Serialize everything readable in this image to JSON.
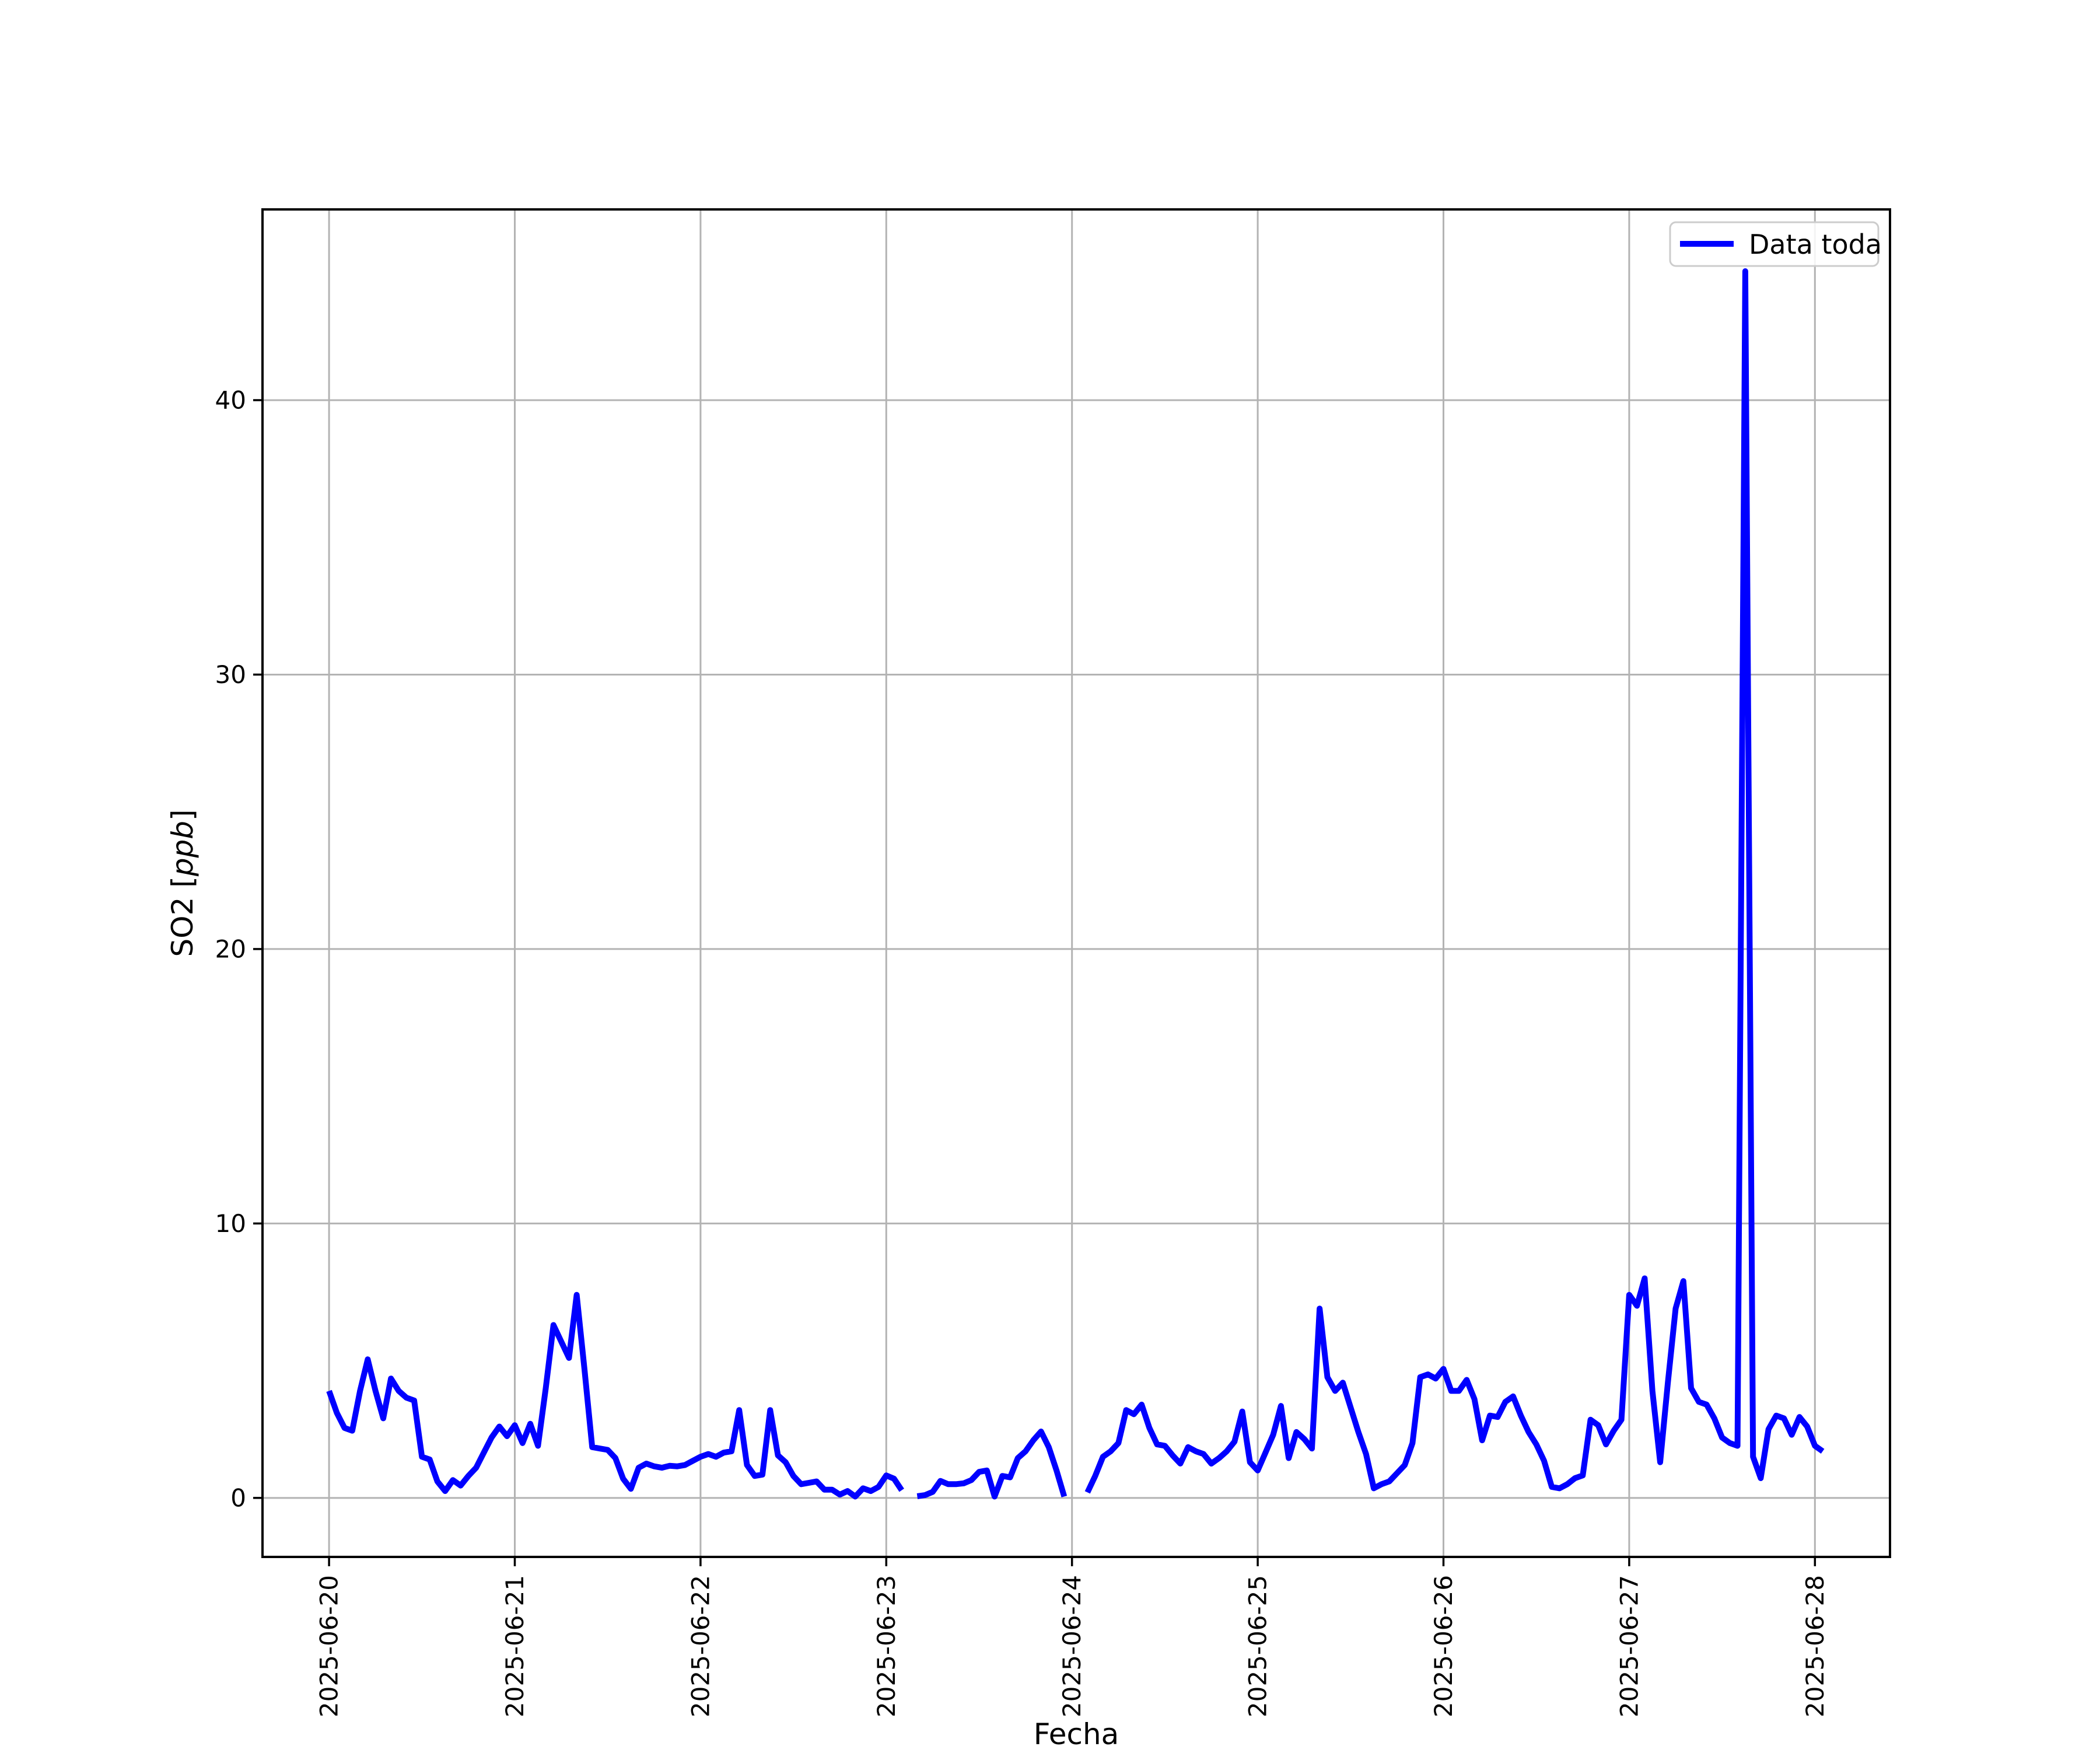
{
  "figure": {
    "background": "#ffffff",
    "xlabel": "Fecha",
    "ylabel_prefix": "SO2 [",
    "ylabel_math": "ppb",
    "ylabel_suffix": "]",
    "legend": {
      "label": "Data toda",
      "line_color": "#0000ff"
    }
  },
  "chart_data": {
    "type": "line",
    "title": "",
    "xlabel": "Fecha",
    "ylabel": "SO2 [ppb]",
    "legend_entries": [
      "Data toda"
    ],
    "legend_position": "upper right",
    "grid": true,
    "grid_color": "#b3b3b3",
    "line_color": "#0000ff",
    "line_width": 10,
    "x_start": "2025-06-20 00:00",
    "x_step_hours": 1,
    "xlim_hours": [
      -8.6,
      201.7
    ],
    "ylim": [
      -2.15,
      46.95
    ],
    "xticks": {
      "hours": [
        0,
        24,
        48,
        72,
        96,
        120,
        144,
        168,
        192
      ],
      "labels": [
        "2025-06-20",
        "2025-06-21",
        "2025-06-22",
        "2025-06-23",
        "2025-06-24",
        "2025-06-25",
        "2025-06-26",
        "2025-06-27",
        "2025-06-28"
      ]
    },
    "yticks": {
      "values": [
        0,
        10,
        20,
        30,
        40
      ],
      "labels": [
        "0",
        "10",
        "20",
        "30",
        "40"
      ]
    },
    "series": [
      {
        "name": "Data toda",
        "color": "#0000ff",
        "values": [
          3.9,
          3.1,
          2.55,
          2.45,
          3.9,
          5.05,
          3.9,
          2.9,
          4.35,
          3.9,
          3.65,
          3.55,
          1.5,
          1.4,
          0.6,
          0.25,
          0.65,
          0.45,
          0.8,
          1.1,
          1.65,
          2.2,
          2.6,
          2.25,
          2.65,
          2.0,
          2.7,
          1.9,
          4.0,
          6.3,
          5.7,
          5.1,
          7.4,
          4.7,
          1.85,
          1.8,
          1.75,
          1.45,
          0.7,
          0.33,
          1.1,
          1.25,
          1.15,
          1.1,
          1.17,
          1.15,
          1.2,
          1.35,
          1.5,
          1.6,
          1.5,
          1.65,
          1.7,
          3.2,
          1.2,
          0.8,
          0.85,
          3.2,
          1.55,
          1.3,
          0.8,
          0.5,
          0.55,
          0.6,
          0.3,
          0.3,
          0.12,
          0.25,
          0.05,
          0.35,
          0.25,
          0.4,
          0.82,
          0.7,
          0.28,
          null,
          0.06,
          0.1,
          0.22,
          0.62,
          0.5,
          0.5,
          0.53,
          0.65,
          0.95,
          1.0,
          0.05,
          0.8,
          0.75,
          1.45,
          1.7,
          2.1,
          2.42,
          1.85,
          1.0,
          0.05,
          null,
          null,
          0.2,
          0.8,
          1.5,
          1.7,
          2.0,
          3.2,
          3.05,
          3.4,
          2.55,
          1.95,
          1.9,
          1.55,
          1.25,
          1.85,
          1.7,
          1.6,
          1.25,
          1.45,
          1.7,
          2.05,
          3.15,
          1.3,
          1.0,
          1.65,
          2.3,
          3.35,
          1.45,
          2.4,
          2.15,
          1.8,
          6.9,
          4.4,
          3.9,
          4.2,
          3.3,
          2.4,
          1.6,
          0.35,
          0.5,
          0.6,
          0.9,
          1.2,
          2.0,
          4.4,
          4.5,
          4.35,
          4.7,
          3.9,
          3.9,
          4.3,
          3.6,
          2.1,
          3.0,
          2.95,
          3.5,
          3.7,
          3.0,
          2.4,
          1.95,
          1.35,
          0.4,
          0.35,
          0.5,
          0.72,
          0.82,
          2.85,
          2.65,
          1.95,
          2.45,
          2.85,
          7.4,
          7.0,
          8.0,
          3.9,
          1.3,
          4.2,
          6.9,
          7.9,
          4.0,
          3.5,
          3.4,
          2.9,
          2.2,
          2.0,
          1.9,
          44.7,
          1.5,
          0.72,
          2.5,
          3.0,
          2.9,
          2.3,
          2.95,
          2.6,
          1.9,
          1.7
        ]
      }
    ]
  }
}
